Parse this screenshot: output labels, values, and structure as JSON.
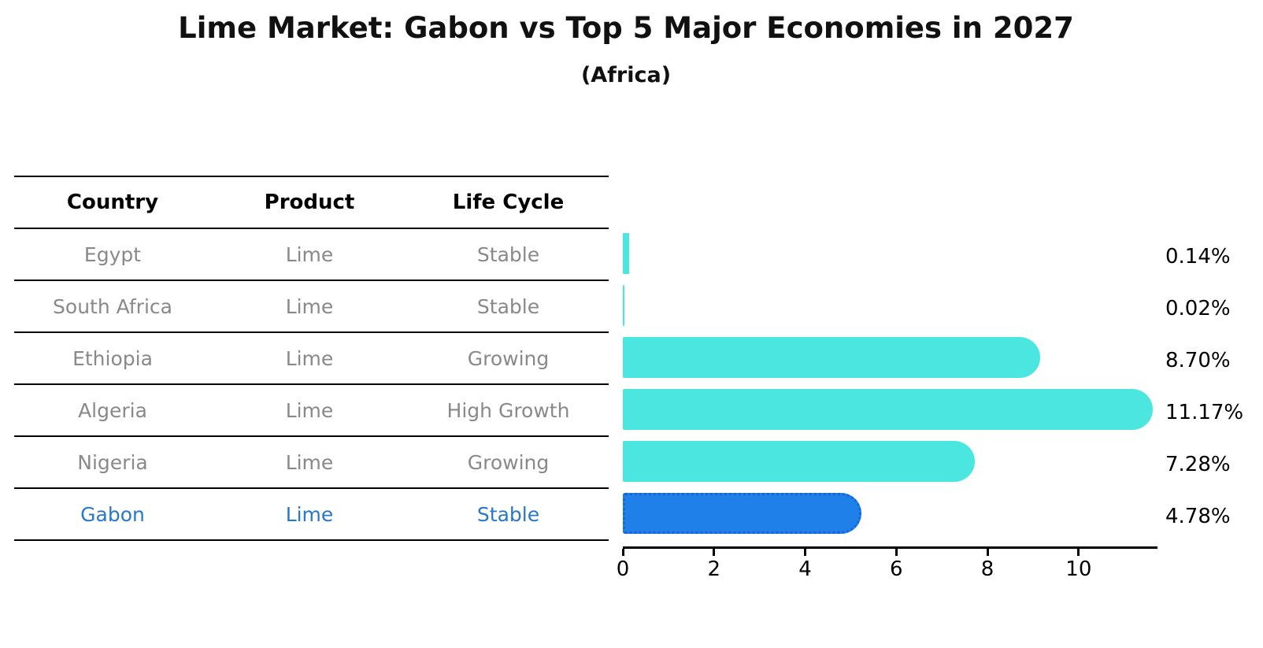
{
  "title": "Lime Market: Gabon vs Top 5 Major Economies in 2027",
  "subtitle": "(Africa)",
  "table": {
    "headers": [
      "Country",
      "Product",
      "Life Cycle"
    ],
    "rows": [
      {
        "country": "Egypt",
        "product": "Lime",
        "life_cycle": "Stable",
        "highlight": false
      },
      {
        "country": "South Africa",
        "product": "Lime",
        "life_cycle": "Stable",
        "highlight": false
      },
      {
        "country": "Ethiopia",
        "product": "Lime",
        "life_cycle": "Growing",
        "highlight": false
      },
      {
        "country": "Algeria",
        "product": "Lime",
        "life_cycle": "High Growth",
        "highlight": false
      },
      {
        "country": "Nigeria",
        "product": "Lime",
        "life_cycle": "Growing",
        "highlight": false
      },
      {
        "country": "Gabon",
        "product": "Lime",
        "life_cycle": "Stable",
        "highlight": true
      }
    ]
  },
  "chart_data": {
    "type": "bar",
    "orientation": "horizontal",
    "title": "Lime Market: Gabon vs Top 5 Major Economies in 2027",
    "subtitle": "(Africa)",
    "categories": [
      "Egypt",
      "South Africa",
      "Ethiopia",
      "Algeria",
      "Nigeria",
      "Gabon"
    ],
    "values": [
      0.14,
      0.02,
      8.7,
      11.17,
      7.28,
      4.78
    ],
    "value_labels": [
      "0.14%",
      "0.02%",
      "8.70%",
      "11.17%",
      "7.28%",
      "4.78%"
    ],
    "xlabel": "",
    "ylabel": "",
    "xlim": [
      0,
      11.73
    ],
    "x_ticks": [
      0,
      2,
      4,
      6,
      8,
      10
    ],
    "grid": false,
    "legend": false,
    "highlight_index": 5,
    "colors": {
      "bar": "#4AE6DF",
      "highlight_bar": "#1F80EA",
      "highlight_bar_border": "#1766CF",
      "highlight_text": "#2878C8",
      "row_text": "#898989",
      "axis": "#000000"
    }
  }
}
